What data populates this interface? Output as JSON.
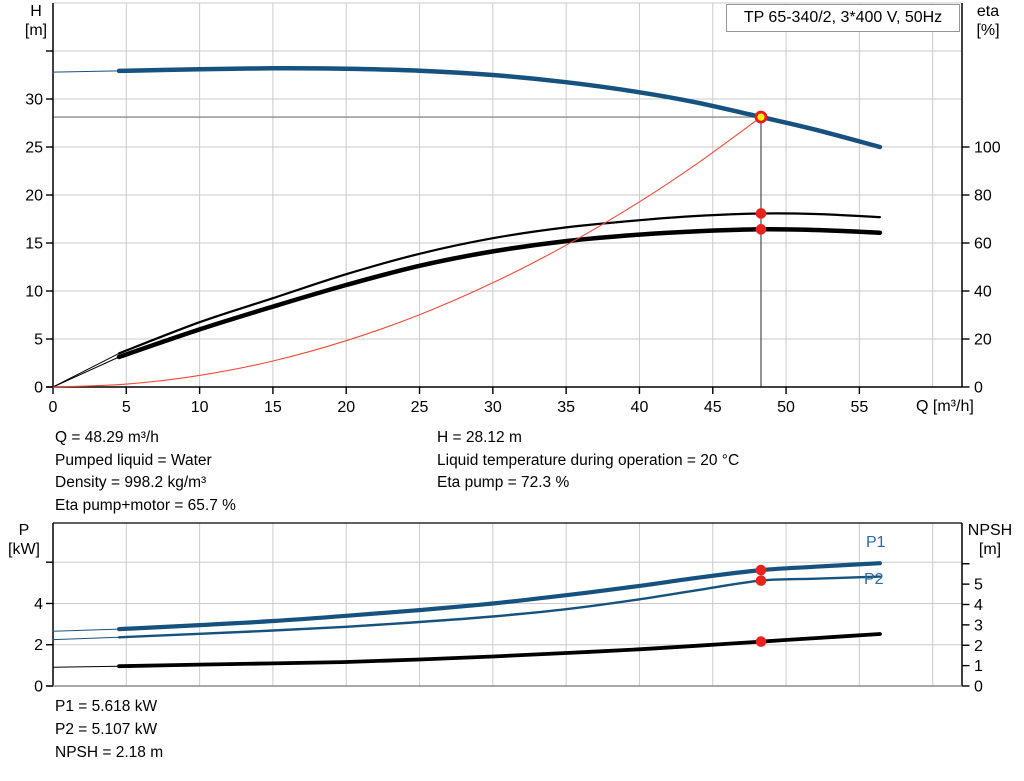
{
  "info_top": {
    "col1": [
      "Q = 48.29 m³/h",
      "Pumped liquid = Water",
      "Density = 998.2 kg/m³",
      "Eta pump+motor = 65.7 %"
    ],
    "col2": [
      "H = 28.12 m",
      "Liquid temperature during operation = 20 °C",
      "Eta pump = 72.3 %"
    ]
  },
  "info_bottom": [
    "P1 = 5.618 kW",
    "P2 = 5.107 kW",
    "NPSH = 2.18 m"
  ],
  "colors": {
    "curve_blue": "#16527f",
    "label_blue": "#2a6ba8",
    "curve_red": "#f04a38",
    "dot_red": "#e8231e",
    "duty_ring": "#e0201a",
    "duty_fill": "#ffe81e",
    "grid": "#cbcbcb",
    "axis": "#000000",
    "frame_gray": "#8c8c8c",
    "guide_h": "#8c8c8c",
    "guide_v": "#4d4d4d"
  },
  "chart_data": [
    {
      "type": "line",
      "title": "TP 65-340/2, 3*400 V, 50Hz",
      "x_axis": {
        "label": "Q [m³/h]",
        "min": 0,
        "max": 62,
        "ticks": [
          0,
          5,
          10,
          15,
          20,
          25,
          30,
          35,
          40,
          45,
          50,
          55
        ],
        "grid": [
          5,
          10,
          15,
          20,
          25,
          30,
          35,
          40,
          45,
          50,
          55,
          60
        ]
      },
      "y_left": {
        "label": "H [m]",
        "label_lines": [
          "H",
          "[m]"
        ],
        "min": 0,
        "max": 40,
        "ticks": [
          0,
          5,
          10,
          15,
          20,
          25,
          30
        ],
        "unlabeled_ticks": [
          35
        ],
        "grid": [
          5,
          10,
          15,
          20,
          25,
          30,
          35,
          40
        ]
      },
      "y_right": {
        "label": "eta [%]",
        "label_lines": [
          "eta",
          "[%]"
        ],
        "min": 0,
        "max": 160,
        "ticks": [
          0,
          20,
          40,
          60,
          80,
          100
        ],
        "unlabeled_ticks": [],
        "grid": []
      },
      "series": [
        {
          "name": "H curve",
          "axis": "left",
          "color": "curve_blue",
          "width": 4.5,
          "thin_until": 4.5,
          "points": [
            [
              0,
              32.8
            ],
            [
              4.5,
              32.93
            ],
            [
              10,
              33.1
            ],
            [
              15,
              33.2
            ],
            [
              20,
              33.15
            ],
            [
              25,
              32.95
            ],
            [
              30,
              32.5
            ],
            [
              35,
              31.75
            ],
            [
              40,
              30.7
            ],
            [
              44,
              29.6
            ],
            [
              48.29,
              28.12
            ],
            [
              52,
              26.8
            ],
            [
              56.4,
              25.0
            ]
          ]
        },
        {
          "name": "eta pump",
          "axis": "right",
          "color": "axis",
          "width": 2.2,
          "thin_until": 4.5,
          "points": [
            [
              0,
              0
            ],
            [
              4.5,
              14
            ],
            [
              10,
              27
            ],
            [
              15,
              37
            ],
            [
              20,
              47
            ],
            [
              25,
              55.5
            ],
            [
              30,
              62
            ],
            [
              35,
              66.5
            ],
            [
              40,
              69.5
            ],
            [
              44,
              71.3
            ],
            [
              48.29,
              72.3
            ],
            [
              52,
              72.1
            ],
            [
              56.4,
              70.8
            ]
          ]
        },
        {
          "name": "eta pump+motor",
          "axis": "right",
          "color": "axis",
          "width": 4.5,
          "thin_until": 4.5,
          "points": [
            [
              0,
              0
            ],
            [
              4.5,
              12.5
            ],
            [
              10,
              24
            ],
            [
              15,
              33.5
            ],
            [
              20,
              42.5
            ],
            [
              25,
              50.5
            ],
            [
              30,
              56.5
            ],
            [
              35,
              60.8
            ],
            [
              40,
              63.5
            ],
            [
              44,
              64.9
            ],
            [
              48.29,
              65.7
            ],
            [
              52,
              65.4
            ],
            [
              56.4,
              64.3
            ]
          ]
        },
        {
          "name": "system curve",
          "axis": "left",
          "color": "curve_red",
          "width": 1.1,
          "points": [
            [
              0,
              0
            ],
            [
              5,
              0.3
            ],
            [
              10,
              1.21
            ],
            [
              15,
              2.71
            ],
            [
              20,
              4.82
            ],
            [
              25,
              7.53
            ],
            [
              30,
              10.85
            ],
            [
              35,
              14.77
            ],
            [
              40,
              19.29
            ],
            [
              44,
              23.34
            ],
            [
              48.29,
              28.12
            ]
          ]
        }
      ],
      "duty_point": {
        "Q": 48.29,
        "H": 28.12,
        "eta_pump": 72.3,
        "eta_pump_motor": 65.7
      },
      "guides": true
    },
    {
      "type": "line",
      "title": "",
      "x_axis": {
        "label": "",
        "min": 0,
        "max": 62,
        "ticks": [],
        "grid": [
          5,
          10,
          15,
          20,
          25,
          30,
          35,
          40,
          45,
          50,
          55,
          60
        ]
      },
      "y_left": {
        "label": "P [kW]",
        "label_lines": [
          "P",
          "[kW]"
        ],
        "min": 0,
        "max": 7.9,
        "ticks": [
          0,
          2,
          4
        ],
        "unlabeled_ticks": [
          6
        ],
        "grid": [
          2,
          4,
          6
        ]
      },
      "y_right": {
        "label": "NPSH [m]",
        "label_lines": [
          "NPSH",
          "[m]"
        ],
        "min": 0,
        "max": 8,
        "ticks": [
          0,
          1,
          2,
          3,
          4,
          5
        ],
        "unlabeled_ticks": [
          6
        ],
        "grid": []
      },
      "series": [
        {
          "name": "P1",
          "axis": "left",
          "color": "curve_blue",
          "width": 4.2,
          "thin_until": 4.5,
          "points": [
            [
              0,
              2.65
            ],
            [
              4.5,
              2.76
            ],
            [
              10,
              2.95
            ],
            [
              15,
              3.15
            ],
            [
              20,
              3.4
            ],
            [
              25,
              3.68
            ],
            [
              30,
              4.0
            ],
            [
              35,
              4.4
            ],
            [
              40,
              4.85
            ],
            [
              44,
              5.25
            ],
            [
              48.29,
              5.618
            ],
            [
              52,
              5.78
            ],
            [
              56.4,
              5.95
            ]
          ]
        },
        {
          "name": "P2",
          "axis": "left",
          "color": "curve_blue",
          "width": 2.4,
          "thin_until": 4.5,
          "points": [
            [
              0,
              2.25
            ],
            [
              4.5,
              2.36
            ],
            [
              10,
              2.53
            ],
            [
              15,
              2.69
            ],
            [
              20,
              2.87
            ],
            [
              25,
              3.1
            ],
            [
              30,
              3.37
            ],
            [
              35,
              3.72
            ],
            [
              40,
              4.2
            ],
            [
              44,
              4.65
            ],
            [
              48.29,
              5.107
            ],
            [
              52,
              5.2
            ],
            [
              56.4,
              5.3
            ]
          ]
        },
        {
          "name": "NPSH",
          "axis": "right",
          "color": "axis",
          "width": 3.8,
          "thin_until": 4.5,
          "points": [
            [
              0,
              0.92
            ],
            [
              4.5,
              0.97
            ],
            [
              10,
              1.05
            ],
            [
              15,
              1.11
            ],
            [
              20,
              1.18
            ],
            [
              25,
              1.3
            ],
            [
              30,
              1.45
            ],
            [
              35,
              1.62
            ],
            [
              40,
              1.8
            ],
            [
              44,
              1.98
            ],
            [
              48.29,
              2.18
            ],
            [
              52,
              2.35
            ],
            [
              56.4,
              2.55
            ]
          ]
        }
      ],
      "duty_point": {
        "Q": 48.29,
        "P1": 5.618,
        "P2": 5.107,
        "NPSH": 2.18
      }
    }
  ]
}
